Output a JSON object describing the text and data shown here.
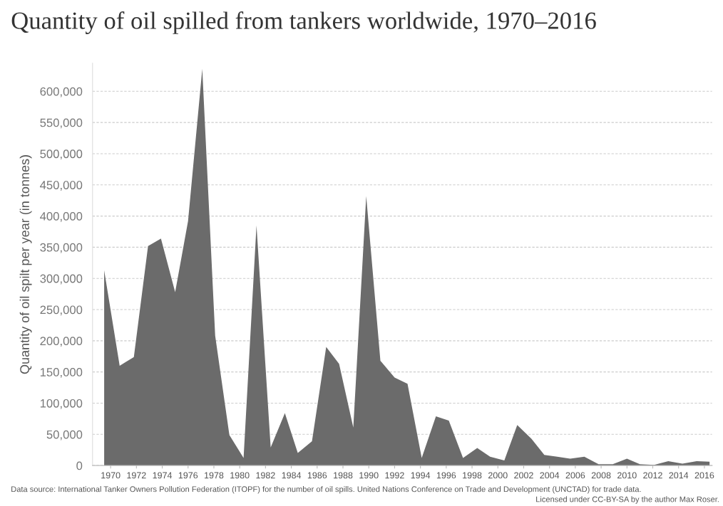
{
  "chart_data": {
    "type": "area",
    "title": "Quantity of oil spilled from tankers worldwide, 1970–2016",
    "ylabel": "Quantity of oil spilt per year (in tonnes)",
    "x": [
      1969.5,
      1970.7,
      1971.8,
      1972.9,
      1973.9,
      1975.0,
      1976.0,
      1977.1,
      1978.1,
      1979.2,
      1980.3,
      1981.3,
      1982.4,
      1983.5,
      1984.5,
      1985.6,
      1986.7,
      1987.7,
      1988.8,
      1989.8,
      1990.9,
      1992.0,
      1993.0,
      1994.1,
      1995.2,
      1996.2,
      1997.3,
      1998.4,
      1999.4,
      2000.5,
      2001.5,
      2002.6,
      2003.6,
      2004.6,
      2005.6,
      2006.7,
      2007.8,
      2008.9,
      2010.0,
      2011.0,
      2012.1,
      2013.2,
      2014.3,
      2015.4,
      2016.4
    ],
    "series": [
      {
        "color": "#6b6b6b",
        "values": [
          313000,
          160000,
          174000,
          352000,
          364000,
          278000,
          392000,
          636000,
          208000,
          49000,
          12000,
          385000,
          29000,
          84000,
          20000,
          39000,
          190000,
          163000,
          61000,
          432000,
          168000,
          141000,
          131000,
          12000,
          79000,
          72000,
          12000,
          28000,
          14000,
          8000,
          65000,
          43000,
          17000,
          14000,
          11000,
          14000,
          2000,
          2000,
          11000,
          2000,
          1000,
          7000,
          3000,
          7000,
          6000
        ]
      }
    ],
    "xlim": [
      1968.6,
      2016.6
    ],
    "xticks": [
      1970,
      1972,
      1974,
      1976,
      1978,
      1980,
      1982,
      1984,
      1986,
      1988,
      1990,
      1992,
      1994,
      1996,
      1998,
      2000,
      2002,
      2004,
      2006,
      2008,
      2010,
      2012,
      2014,
      2016
    ],
    "ylim": [
      0,
      645000
    ],
    "yticks": [
      {
        "value": 0,
        "label": "0"
      },
      {
        "value": 50000,
        "label": "50,000"
      },
      {
        "value": 100000,
        "label": "100,000"
      },
      {
        "value": 150000,
        "label": "150,000"
      },
      {
        "value": 200000,
        "label": "200,000"
      },
      {
        "value": 250000,
        "label": "250,000"
      },
      {
        "value": 300000,
        "label": "300,000"
      },
      {
        "value": 350000,
        "label": "350,000"
      },
      {
        "value": 400000,
        "label": "400,000"
      },
      {
        "value": 450000,
        "label": "450,000"
      },
      {
        "value": 500000,
        "label": "500,000"
      },
      {
        "value": 550000,
        "label": "550,000"
      },
      {
        "value": 600000,
        "label": "600,000"
      }
    ],
    "grid": "y",
    "annotations": [
      "Data source: International Tanker Owners Pollution Federation (ITOPF) for the number of oil spills. United Nations Conference on Trade and Development (UNCTAD) for trade data.",
      "Licensed under CC-BY-SA by the author Max Roser."
    ]
  }
}
